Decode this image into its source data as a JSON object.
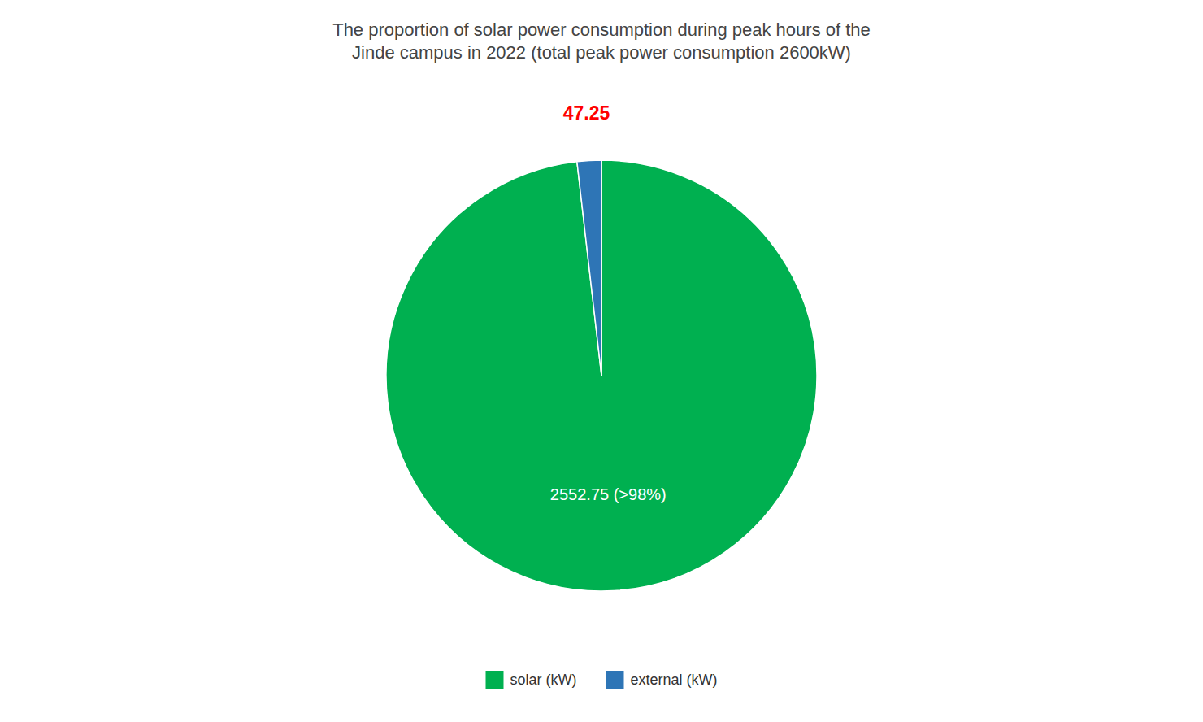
{
  "chart_data": {
    "type": "pie",
    "title": "The proportion of solar power consumption during peak hours of the\nJinde campus in 2022 (total peak power consumption 2600kW)",
    "categories": [
      "solar (kW)",
      "external (kW)"
    ],
    "values": [
      2552.75,
      47.25
    ],
    "value_labels": [
      "2552.75 (>98%)",
      "47.25"
    ],
    "colors": [
      "#00B050",
      "#2E75B6"
    ],
    "data_labels": true,
    "legend": "bottom"
  }
}
